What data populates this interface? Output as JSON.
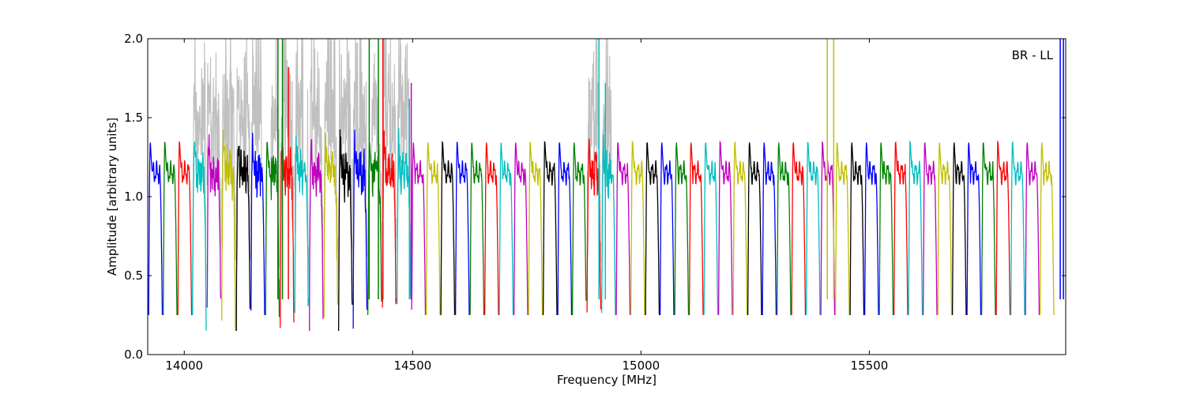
{
  "chart_data": {
    "type": "line",
    "title": "",
    "xlabel": "Frequency [MHz]",
    "ylabel": "Amplitude [arbitrary units]",
    "annotation": "BR - LL",
    "xlim": [
      13920,
      15930
    ],
    "ylim": [
      0.0,
      2.0
    ],
    "x_ticks": [
      14000,
      14500,
      15000,
      15500
    ],
    "x_tick_labels": [
      "14000",
      "14500",
      "15000",
      "15500"
    ],
    "y_ticks": [
      0.0,
      0.5,
      1.0,
      1.5,
      2.0
    ],
    "y_tick_labels": [
      "0.0",
      "0.5",
      "1.0",
      "1.5",
      "2.0"
    ],
    "grid": false,
    "colors": [
      "#0000ff",
      "#008000",
      "#ff0000",
      "#00bfbf",
      "#bf00bf",
      "#bfbf00",
      "#000000"
    ],
    "background_trace_color": "#c0c0c0",
    "band_start_mhz": 13922,
    "band_width_mhz": 32,
    "band_count": 62,
    "band_shape": {
      "edge_low": 0.25,
      "peak": 1.35,
      "plateau": 1.15
    },
    "flagged_spikes": [
      {
        "x": 14205,
        "y_max": 2.0,
        "color": "#008000"
      },
      {
        "x": 14215,
        "y_max": 2.0,
        "color": "#008000"
      },
      {
        "x": 14228,
        "y_max": 1.82,
        "color": "#ff0000"
      },
      {
        "x": 14405,
        "y_max": 2.0,
        "color": "#008000"
      },
      {
        "x": 14425,
        "y_max": 2.0,
        "color": "#008000"
      },
      {
        "x": 14435,
        "y_max": 2.0,
        "color": "#ff0000"
      },
      {
        "x": 14493,
        "y_max": 1.62,
        "color": "#00bfbf"
      },
      {
        "x": 14497,
        "y_max": 1.72,
        "color": "#bf00bf"
      },
      {
        "x": 14908,
        "y_max": 2.0,
        "color": "#00bfbf"
      },
      {
        "x": 14922,
        "y_max": 1.72,
        "color": "#00bfbf"
      },
      {
        "x": 15408,
        "y_max": 2.0,
        "color": "#bfbf00"
      },
      {
        "x": 15422,
        "y_max": 2.0,
        "color": "#bfbf00"
      },
      {
        "x": 15918,
        "y_max": 2.0,
        "color": "#0000ff"
      },
      {
        "x": 15925,
        "y_max": 2.0,
        "color": "#0000ff"
      }
    ],
    "rfi_regions_mhz": [
      [
        14020,
        14170
      ],
      [
        14190,
        14260
      ],
      [
        14270,
        14400
      ],
      [
        14410,
        14500
      ],
      [
        14880,
        14935
      ]
    ]
  }
}
